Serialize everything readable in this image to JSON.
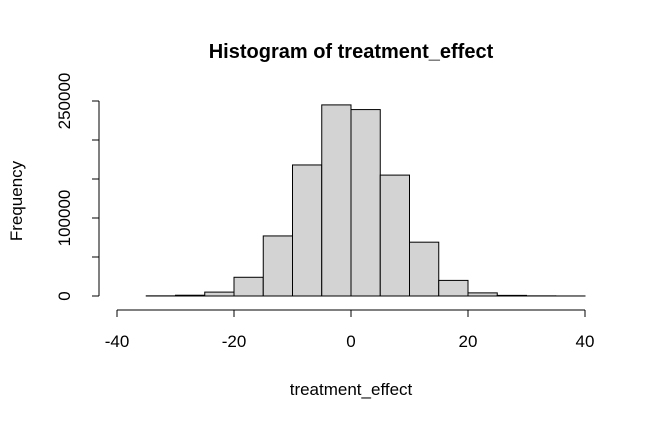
{
  "chart_data": {
    "type": "bar",
    "title": "Histogram of treatment_effect",
    "xlabel": "treatment_effect",
    "ylabel": "Frequency",
    "xlim": [
      -40,
      40
    ],
    "ylim": [
      0,
      250000
    ],
    "bin_width": 5,
    "bins": [
      {
        "x0": -35,
        "x1": -30,
        "value": 200
      },
      {
        "x0": -30,
        "x1": -25,
        "value": 1000
      },
      {
        "x0": -25,
        "x1": -20,
        "value": 5000
      },
      {
        "x0": -20,
        "x1": -15,
        "value": 24000
      },
      {
        "x0": -15,
        "x1": -10,
        "value": 77000
      },
      {
        "x0": -10,
        "x1": -5,
        "value": 168000
      },
      {
        "x0": -5,
        "x1": 0,
        "value": 245000
      },
      {
        "x0": 0,
        "x1": 5,
        "value": 239000
      },
      {
        "x0": 5,
        "x1": 10,
        "value": 155000
      },
      {
        "x0": 10,
        "x1": 15,
        "value": 69000
      },
      {
        "x0": 15,
        "x1": 20,
        "value": 20000
      },
      {
        "x0": 20,
        "x1": 25,
        "value": 4000
      },
      {
        "x0": 25,
        "x1": 30,
        "value": 800
      },
      {
        "x0": 30,
        "x1": 35,
        "value": 200
      },
      {
        "x0": 35,
        "x1": 40,
        "value": 50
      }
    ],
    "x_ticks": [
      -40,
      -20,
      0,
      20,
      40
    ],
    "y_ticks": [
      0,
      50000,
      100000,
      150000,
      200000,
      250000
    ],
    "y_tick_labels": [
      {
        "value": 0,
        "label": "0"
      },
      {
        "value": 100000,
        "label": "100000"
      },
      {
        "value": 250000,
        "label": "250000"
      }
    ],
    "colors": {
      "bar_fill": "#d3d3d3",
      "bar_stroke": "#000000"
    },
    "grid": false
  }
}
